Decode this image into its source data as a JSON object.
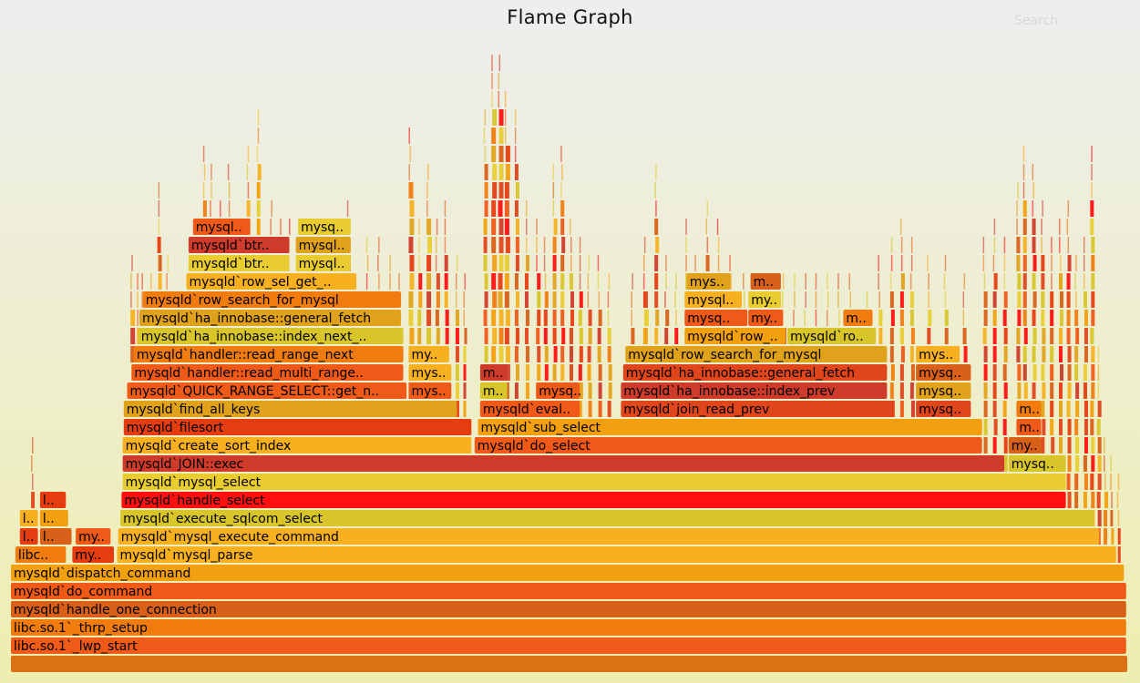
{
  "title": "Flame Graph",
  "search_label": "Search",
  "chart_data": {
    "type": "flame",
    "levels_from_bottom": [
      [
        {
          "label": "",
          "start": 0.0,
          "end": 1.0
        }
      ],
      [
        {
          "label": "libc.so.1`_lwp_start",
          "start": 0.0,
          "end": 0.999
        }
      ],
      [
        {
          "label": "libc.so.1`_thrp_setup",
          "start": 0.0,
          "end": 0.999
        }
      ],
      [
        {
          "label": "mysqld`handle_one_connection",
          "start": 0.0,
          "end": 0.999
        }
      ],
      [
        {
          "label": "mysqld`do_command",
          "start": 0.0,
          "end": 0.999
        }
      ],
      [
        {
          "label": "mysqld`dispatch_command",
          "start": 0.0,
          "end": 0.997
        }
      ],
      [
        {
          "label": "libc..",
          "start": 0.004,
          "end": 0.05
        },
        {
          "label": "my..",
          "start": 0.055,
          "end": 0.093
        },
        {
          "label": "mysqld`mysql_parse",
          "start": 0.095,
          "end": 0.99
        }
      ],
      [
        {
          "label": "l..",
          "start": 0.008,
          "end": 0.025
        },
        {
          "label": "l..",
          "start": 0.026,
          "end": 0.055
        },
        {
          "label": "my..",
          "start": 0.058,
          "end": 0.09
        },
        {
          "label": "mysqld`mysql_execute_command",
          "start": 0.096,
          "end": 0.975
        }
      ],
      [
        {
          "label": "l..",
          "start": 0.008,
          "end": 0.025
        },
        {
          "label": "l..",
          "start": 0.026,
          "end": 0.052
        },
        {
          "label": "mysqld`execute_sqlcom_select",
          "start": 0.098,
          "end": 0.97
        }
      ],
      [
        {
          "label": "l..",
          "start": 0.026,
          "end": 0.05
        },
        {
          "label": "mysqld`handle_select",
          "start": 0.099,
          "end": 0.945
        }
      ],
      [
        {
          "label": "mysqld`mysql_select",
          "start": 0.1,
          "end": 0.945
        }
      ],
      [
        {
          "label": "mysqld`JOIN::exec",
          "start": 0.1,
          "end": 0.89
        },
        {
          "label": "mysq..",
          "start": 0.893,
          "end": 0.945
        }
      ],
      [
        {
          "label": "mysqld`create_sort_index",
          "start": 0.1,
          "end": 0.413
        },
        {
          "label": "mysqld`do_select",
          "start": 0.415,
          "end": 0.87
        },
        {
          "label": "my..",
          "start": 0.893,
          "end": 0.923
        }
      ],
      [
        {
          "label": "mysqld`filesort",
          "start": 0.101,
          "end": 0.413
        },
        {
          "label": "mysqld`sub_select",
          "start": 0.418,
          "end": 0.87
        },
        {
          "label": "m..",
          "start": 0.9,
          "end": 0.923
        }
      ],
      [
        {
          "label": "mysqld`find_all_keys",
          "start": 0.101,
          "end": 0.4
        },
        {
          "label": "mysqld`eval..",
          "start": 0.42,
          "end": 0.51
        },
        {
          "label": "mysqld`join_read_prev",
          "start": 0.546,
          "end": 0.79
        },
        {
          "label": "mysq..",
          "start": 0.81,
          "end": 0.86
        },
        {
          "label": "m..",
          "start": 0.9,
          "end": 0.923
        }
      ],
      [
        {
          "label": "mysqld`QUICK_RANGE_SELECT::get_n..",
          "start": 0.104,
          "end": 0.355
        },
        {
          "label": "mys..",
          "start": 0.356,
          "end": 0.395
        },
        {
          "label": "m..",
          "start": 0.42,
          "end": 0.445
        },
        {
          "label": "mysq..",
          "start": 0.47,
          "end": 0.51
        },
        {
          "label": "mysqld`ha_innobase::index_prev",
          "start": 0.546,
          "end": 0.785
        },
        {
          "label": "mysq..",
          "start": 0.81,
          "end": 0.86
        }
      ],
      [
        {
          "label": "mysqld`handler::read_multi_range..",
          "start": 0.108,
          "end": 0.352
        },
        {
          "label": "mys..",
          "start": 0.356,
          "end": 0.395
        },
        {
          "label": "m..",
          "start": 0.42,
          "end": 0.445
        },
        {
          "label": "mysqld`ha_innobase::general_fetch",
          "start": 0.548,
          "end": 0.785
        },
        {
          "label": "mysq..",
          "start": 0.81,
          "end": 0.86
        }
      ],
      [
        {
          "label": "mysqld`handler::read_range_next",
          "start": 0.11,
          "end": 0.352
        },
        {
          "label": "my..",
          "start": 0.356,
          "end": 0.393
        },
        {
          "label": "mysqld`row_search_for_mysql",
          "start": 0.55,
          "end": 0.785
        },
        {
          "label": "mys..",
          "start": 0.81,
          "end": 0.85
        }
      ],
      [
        {
          "label": "mysqld`ha_innobase::index_next_..",
          "start": 0.114,
          "end": 0.352
        },
        {
          "label": "mysqld`row_..",
          "start": 0.603,
          "end": 0.694
        },
        {
          "label": "mysqld`ro..",
          "start": 0.695,
          "end": 0.775
        }
      ],
      [
        {
          "label": "mysqld`ha_innobase::general_fetch",
          "start": 0.115,
          "end": 0.35
        },
        {
          "label": "mysq..",
          "start": 0.603,
          "end": 0.66
        },
        {
          "label": "my..",
          "start": 0.66,
          "end": 0.692
        },
        {
          "label": "m..",
          "start": 0.745,
          "end": 0.772
        }
      ],
      [
        {
          "label": "mysqld`row_search_for_mysql",
          "start": 0.118,
          "end": 0.35
        },
        {
          "label": "mysql..",
          "start": 0.603,
          "end": 0.655
        },
        {
          "label": "my..",
          "start": 0.66,
          "end": 0.69
        }
      ],
      [
        {
          "label": "mysqld`row_sel_get_..",
          "start": 0.157,
          "end": 0.31
        },
        {
          "label": "mys..",
          "start": 0.605,
          "end": 0.645
        },
        {
          "label": "m..",
          "start": 0.662,
          "end": 0.69
        }
      ],
      [
        {
          "label": "mysqld`btr..",
          "start": 0.159,
          "end": 0.25
        },
        {
          "label": "mysql..",
          "start": 0.255,
          "end": 0.305
        }
      ],
      [
        {
          "label": "mysqld`btr..",
          "start": 0.159,
          "end": 0.25
        },
        {
          "label": "mysql..",
          "start": 0.255,
          "end": 0.305
        }
      ],
      [
        {
          "label": "mysql..",
          "start": 0.163,
          "end": 0.215
        },
        {
          "label": "mysq..",
          "start": 0.257,
          "end": 0.305
        }
      ]
    ]
  }
}
